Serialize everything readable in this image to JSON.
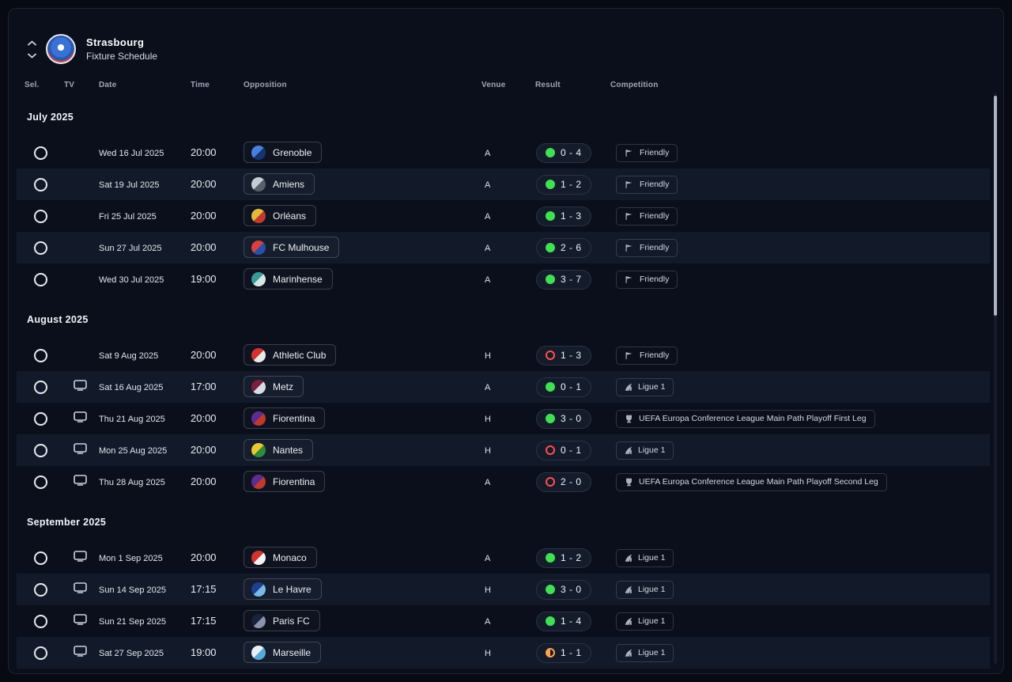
{
  "panel": {
    "title": "Strasbourg",
    "subtitle": "Fixture Schedule"
  },
  "columns": {
    "sel": "Sel.",
    "tv": "TV",
    "date": "Date",
    "time": "Time",
    "opposition": "Opposition",
    "venue": "Venue",
    "result": "Result",
    "competition": "Competition"
  },
  "colors": {
    "win": "#3fe052",
    "loss": "#ff4f4f",
    "draw": "#ffa24d",
    "row_alt": "#121a29"
  },
  "table": {
    "sections": [
      {
        "month": "July 2025",
        "rows": [
          {
            "tv": false,
            "date": "Wed 16 Jul 2025",
            "time": "20:00",
            "opponent": "Grenoble",
            "badge": [
              "#4a7fe0",
              "#16356e"
            ],
            "venue": "A",
            "outcome": "win",
            "score": "0 - 4",
            "competition": "Friendly",
            "comp_icon": "friendly"
          },
          {
            "tv": false,
            "date": "Sat 19 Jul 2025",
            "time": "20:00",
            "opponent": "Amiens",
            "badge": [
              "#c6ccd6",
              "#59616e"
            ],
            "venue": "A",
            "outcome": "win",
            "score": "1 - 2",
            "competition": "Friendly",
            "comp_icon": "friendly"
          },
          {
            "tv": false,
            "date": "Fri 25 Jul 2025",
            "time": "20:00",
            "opponent": "Orléans",
            "badge": [
              "#e3b93c",
              "#c23a2e"
            ],
            "venue": "A",
            "outcome": "win",
            "score": "1 - 3",
            "competition": "Friendly",
            "comp_icon": "friendly"
          },
          {
            "tv": false,
            "date": "Sun 27 Jul 2025",
            "time": "20:00",
            "opponent": "FC Mulhouse",
            "badge": [
              "#d84040",
              "#2a4fa8"
            ],
            "venue": "A",
            "outcome": "win",
            "score": "2 - 6",
            "competition": "Friendly",
            "comp_icon": "friendly"
          },
          {
            "tv": false,
            "date": "Wed 30 Jul 2025",
            "time": "19:00",
            "opponent": "Marinhense",
            "badge": [
              "#3a9a96",
              "#d9e5e5"
            ],
            "venue": "A",
            "outcome": "win",
            "score": "3 - 7",
            "competition": "Friendly",
            "comp_icon": "friendly"
          }
        ]
      },
      {
        "month": "August 2025",
        "rows": [
          {
            "tv": false,
            "date": "Sat 9 Aug 2025",
            "time": "20:00",
            "opponent": "Athletic Club",
            "badge": [
              "#d0342c",
              "#e9e9e9"
            ],
            "venue": "H",
            "outcome": "loss",
            "score": "1 - 3",
            "competition": "Friendly",
            "comp_icon": "friendly"
          },
          {
            "tv": true,
            "date": "Sat 16 Aug 2025",
            "time": "17:00",
            "opponent": "Metz",
            "badge": [
              "#7a1f3d",
              "#d8dde5"
            ],
            "venue": "A",
            "outcome": "win",
            "score": "0 - 1",
            "competition": "Ligue 1",
            "comp_icon": "ligue1"
          },
          {
            "tv": true,
            "date": "Thu 21 Aug 2025",
            "time": "20:00",
            "opponent": "Fiorentina",
            "badge": [
              "#5c2d91",
              "#c0392b"
            ],
            "venue": "H",
            "outcome": "win",
            "score": "3 - 0",
            "competition": "UEFA Europa Conference League Main Path Playoff First Leg",
            "comp_icon": "uefa"
          },
          {
            "tv": true,
            "date": "Mon 25 Aug 2025",
            "time": "20:00",
            "opponent": "Nantes",
            "badge": [
              "#e9c832",
              "#2f8a3c"
            ],
            "venue": "H",
            "outcome": "loss",
            "score": "0 - 1",
            "competition": "Ligue 1",
            "comp_icon": "ligue1"
          },
          {
            "tv": true,
            "date": "Thu 28 Aug 2025",
            "time": "20:00",
            "opponent": "Fiorentina",
            "badge": [
              "#5c2d91",
              "#c0392b"
            ],
            "venue": "A",
            "outcome": "loss",
            "score": "2 - 0",
            "competition": "UEFA Europa Conference League Main Path Playoff Second Leg",
            "comp_icon": "uefa"
          }
        ]
      },
      {
        "month": "September 2025",
        "rows": [
          {
            "tv": true,
            "date": "Mon 1 Sep 2025",
            "time": "20:00",
            "opponent": "Monaco",
            "badge": [
              "#d0342c",
              "#f2f2f2"
            ],
            "venue": "A",
            "outcome": "win",
            "score": "1 - 2",
            "competition": "Ligue 1",
            "comp_icon": "ligue1"
          },
          {
            "tv": true,
            "date": "Sun 14 Sep 2025",
            "time": "17:15",
            "opponent": "Le Havre",
            "badge": [
              "#1f3f8f",
              "#79b9e8"
            ],
            "venue": "H",
            "outcome": "win",
            "score": "3 - 0",
            "competition": "Ligue 1",
            "comp_icon": "ligue1"
          },
          {
            "tv": true,
            "date": "Sun 21 Sep 2025",
            "time": "17:15",
            "opponent": "Paris FC",
            "badge": [
              "#18223d",
              "#8a93a8"
            ],
            "venue": "A",
            "outcome": "win",
            "score": "1 - 4",
            "competition": "Ligue 1",
            "comp_icon": "ligue1"
          },
          {
            "tv": true,
            "date": "Sat 27 Sep 2025",
            "time": "19:00",
            "opponent": "Marseille",
            "badge": [
              "#e9eff5",
              "#58a8d8"
            ],
            "venue": "H",
            "outcome": "draw",
            "score": "1 - 1",
            "competition": "Ligue 1",
            "comp_icon": "ligue1"
          }
        ]
      }
    ]
  }
}
